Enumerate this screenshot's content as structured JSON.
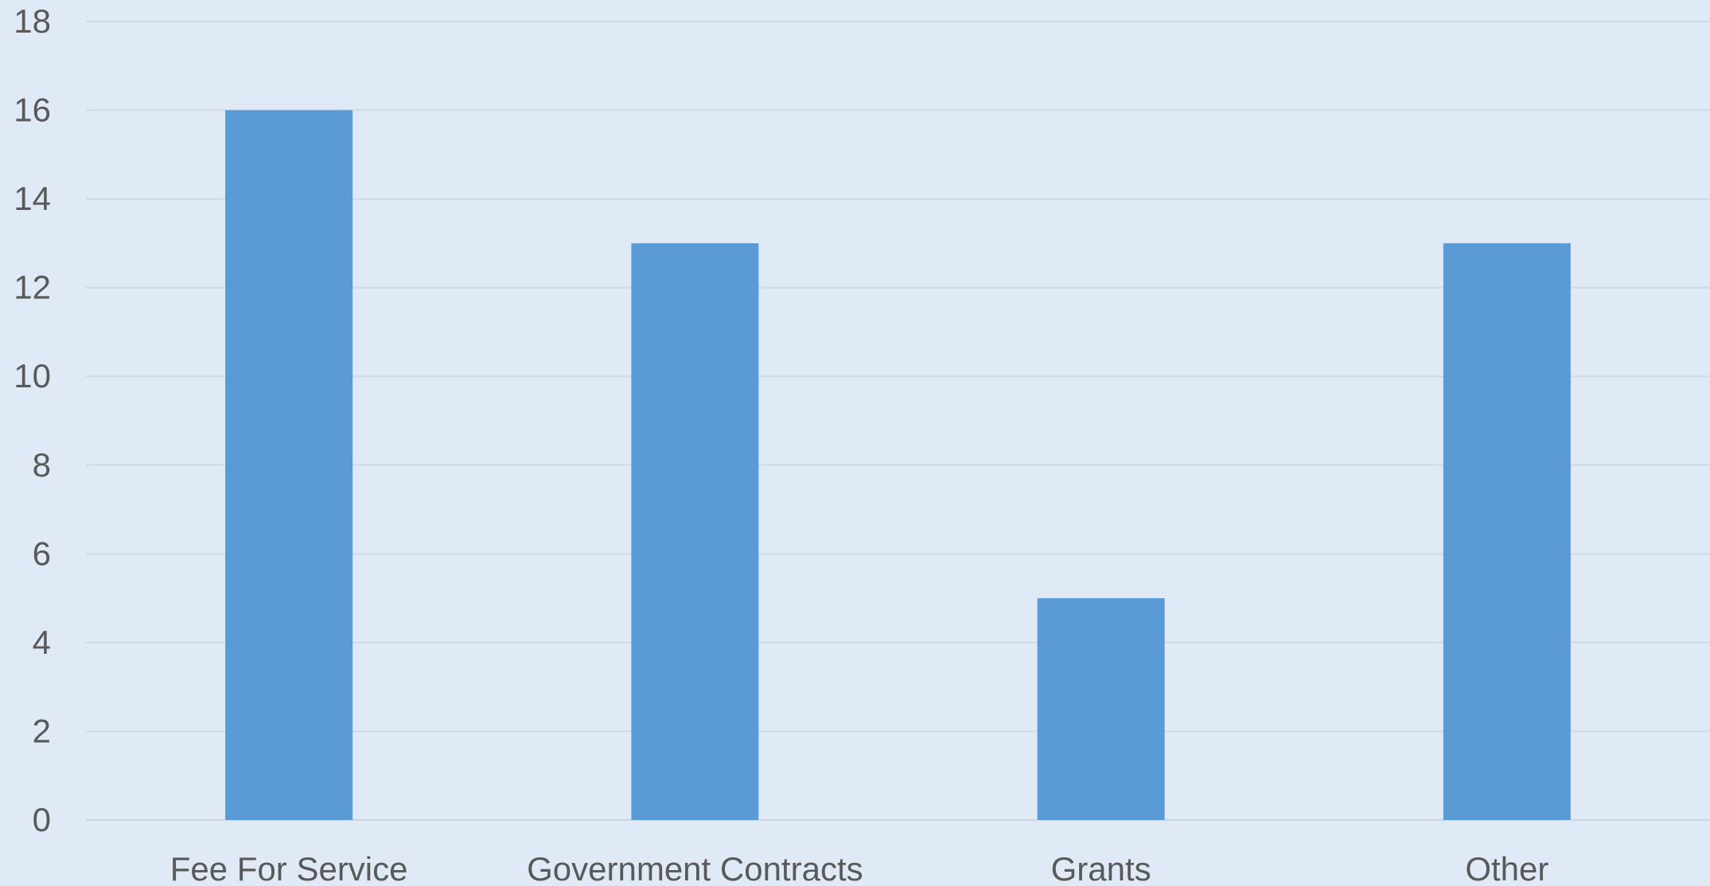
{
  "chart_data": {
    "type": "bar",
    "title": "",
    "xlabel": "",
    "ylabel": "",
    "categories": [
      "Fee For Service",
      "Government Contracts",
      "Grants",
      "Other"
    ],
    "values": [
      16,
      13,
      5,
      13
    ],
    "ylim": [
      0,
      18
    ],
    "y_ticks": [
      "0",
      "2",
      "4",
      "6",
      "8",
      "10",
      "12",
      "14",
      "16",
      "18"
    ],
    "grid": true,
    "legend": "none",
    "bar_color": "#5b9bd5",
    "background_color": "#dfeaf6"
  }
}
